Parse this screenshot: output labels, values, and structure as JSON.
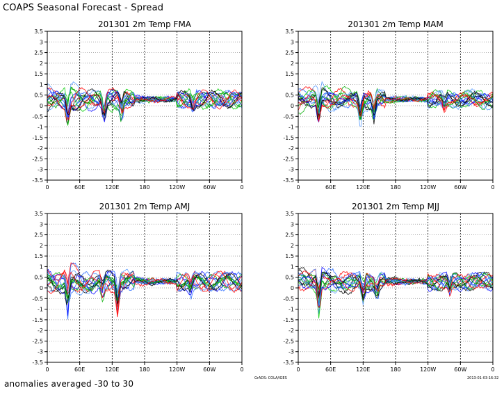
{
  "header": {
    "title": "COAPS Seasonal Forecast - Spread"
  },
  "footer": {
    "note": "anomalies averaged -30 to 30",
    "credit_left": "GrADS: COLA/IGES",
    "credit_right": "2013-01-03-16:32"
  },
  "chart_data": [
    {
      "type": "line",
      "title": "201301      2m Temp   FMA",
      "ylim": [
        -3.5,
        3.5
      ],
      "yticks": [
        "3.5",
        "3",
        "2.5",
        "2",
        "1.5",
        "1",
        "0.5",
        "0",
        "-0.5",
        "-1",
        "-1.5",
        "-2",
        "-2.5",
        "-3",
        "-3.5"
      ],
      "xlim": [
        0,
        360
      ],
      "xticks": [
        "0",
        "60E",
        "120E",
        "180",
        "120W",
        "60W",
        "0"
      ],
      "grid": true,
      "series_colors": [
        "#000000",
        "#ff0000",
        "#00cc00",
        "#0000ff",
        "#2266ff",
        "#00aa00",
        "#5599ff"
      ],
      "baseline": 0.3,
      "dips": [
        [
          38,
          -0.6
        ],
        [
          105,
          -0.7
        ],
        [
          137,
          -0.5
        ],
        [
          270,
          -0.1
        ]
      ]
    },
    {
      "type": "line",
      "title": "201301      2m Temp   MAM",
      "ylim": [
        -3.5,
        3.5
      ],
      "yticks": [
        "3.5",
        "3",
        "2.5",
        "2",
        "1.5",
        "1",
        "0.5",
        "0",
        "-0.5",
        "-1",
        "-1.5",
        "-2",
        "-2.5",
        "-3",
        "-3.5"
      ],
      "xlim": [
        0,
        360
      ],
      "xticks": [
        "0",
        "60E",
        "120E",
        "180",
        "120W",
        "60W",
        "0"
      ],
      "grid": true,
      "series_colors": [
        "#000000",
        "#ff0000",
        "#00cc00",
        "#0000ff",
        "#2266ff",
        "#00aa00",
        "#5599ff"
      ],
      "baseline": 0.3,
      "dips": [
        [
          38,
          -0.7
        ],
        [
          115,
          -0.8
        ],
        [
          140,
          -0.6
        ],
        [
          270,
          -0.1
        ]
      ]
    },
    {
      "type": "line",
      "title": "201301      2m Temp   AMJ",
      "ylim": [
        -3.5,
        3.5
      ],
      "yticks": [
        "3.5",
        "3",
        "2.5",
        "2",
        "1.5",
        "1",
        "0.5",
        "0",
        "-0.5",
        "-1",
        "-1.5",
        "-2",
        "-2.5",
        "-3",
        "-3.5"
      ],
      "xlim": [
        0,
        360
      ],
      "xticks": [
        "0",
        "60E",
        "120E",
        "180",
        "120W",
        "60W",
        "0"
      ],
      "grid": true,
      "series_colors": [
        "#000000",
        "#ff0000",
        "#00cc00",
        "#0000ff",
        "#2266ff",
        "#00aa00",
        "#5599ff"
      ],
      "baseline": 0.3,
      "dips": [
        [
          38,
          -0.9
        ],
        [
          102,
          -0.4
        ],
        [
          130,
          -0.9
        ],
        [
          265,
          -0.2
        ]
      ]
    },
    {
      "type": "line",
      "title": "201301      2m Temp   MJJ",
      "ylim": [
        -3.5,
        3.5
      ],
      "yticks": [
        "3.5",
        "3",
        "2.5",
        "2",
        "1.5",
        "1",
        "0.5",
        "0",
        "-0.5",
        "-1",
        "-1.5",
        "-2",
        "-2.5",
        "-3",
        "-3.5"
      ],
      "xlim": [
        0,
        360
      ],
      "xticks": [
        "0",
        "60E",
        "120E",
        "180",
        "120W",
        "60W",
        "0"
      ],
      "grid": true,
      "series_colors": [
        "#000000",
        "#ff0000",
        "#00cc00",
        "#0000ff",
        "#2266ff",
        "#00aa00",
        "#5599ff"
      ],
      "baseline": 0.3,
      "dips": [
        [
          38,
          -1.0
        ],
        [
          120,
          -0.5
        ],
        [
          145,
          -0.3
        ],
        [
          280,
          -0.2
        ]
      ]
    }
  ]
}
